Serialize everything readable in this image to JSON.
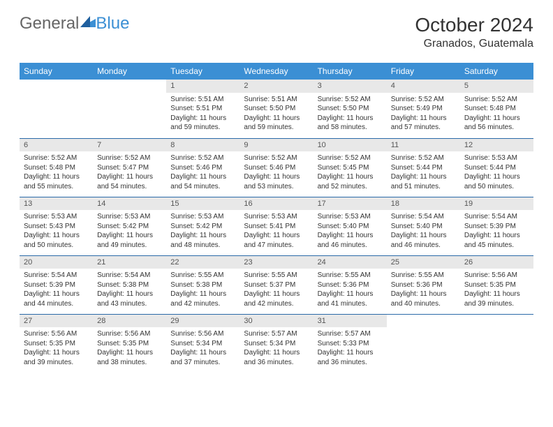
{
  "logo": {
    "text_general": "General",
    "text_blue": "Blue"
  },
  "title": "October 2024",
  "location": "Granados, Guatemala",
  "colors": {
    "header_bg": "#3b8fd4",
    "header_text": "#ffffff",
    "day_header_bg": "#e8e8e8",
    "border": "#2a6aa8",
    "body_text": "#333333"
  },
  "day_headers": [
    "Sunday",
    "Monday",
    "Tuesday",
    "Wednesday",
    "Thursday",
    "Friday",
    "Saturday"
  ],
  "weeks": [
    [
      null,
      null,
      {
        "n": "1",
        "sr": "5:51 AM",
        "ss": "5:51 PM",
        "dl": "11 hours and 59 minutes."
      },
      {
        "n": "2",
        "sr": "5:51 AM",
        "ss": "5:50 PM",
        "dl": "11 hours and 59 minutes."
      },
      {
        "n": "3",
        "sr": "5:52 AM",
        "ss": "5:50 PM",
        "dl": "11 hours and 58 minutes."
      },
      {
        "n": "4",
        "sr": "5:52 AM",
        "ss": "5:49 PM",
        "dl": "11 hours and 57 minutes."
      },
      {
        "n": "5",
        "sr": "5:52 AM",
        "ss": "5:48 PM",
        "dl": "11 hours and 56 minutes."
      }
    ],
    [
      {
        "n": "6",
        "sr": "5:52 AM",
        "ss": "5:48 PM",
        "dl": "11 hours and 55 minutes."
      },
      {
        "n": "7",
        "sr": "5:52 AM",
        "ss": "5:47 PM",
        "dl": "11 hours and 54 minutes."
      },
      {
        "n": "8",
        "sr": "5:52 AM",
        "ss": "5:46 PM",
        "dl": "11 hours and 54 minutes."
      },
      {
        "n": "9",
        "sr": "5:52 AM",
        "ss": "5:46 PM",
        "dl": "11 hours and 53 minutes."
      },
      {
        "n": "10",
        "sr": "5:52 AM",
        "ss": "5:45 PM",
        "dl": "11 hours and 52 minutes."
      },
      {
        "n": "11",
        "sr": "5:52 AM",
        "ss": "5:44 PM",
        "dl": "11 hours and 51 minutes."
      },
      {
        "n": "12",
        "sr": "5:53 AM",
        "ss": "5:44 PM",
        "dl": "11 hours and 50 minutes."
      }
    ],
    [
      {
        "n": "13",
        "sr": "5:53 AM",
        "ss": "5:43 PM",
        "dl": "11 hours and 50 minutes."
      },
      {
        "n": "14",
        "sr": "5:53 AM",
        "ss": "5:42 PM",
        "dl": "11 hours and 49 minutes."
      },
      {
        "n": "15",
        "sr": "5:53 AM",
        "ss": "5:42 PM",
        "dl": "11 hours and 48 minutes."
      },
      {
        "n": "16",
        "sr": "5:53 AM",
        "ss": "5:41 PM",
        "dl": "11 hours and 47 minutes."
      },
      {
        "n": "17",
        "sr": "5:53 AM",
        "ss": "5:40 PM",
        "dl": "11 hours and 46 minutes."
      },
      {
        "n": "18",
        "sr": "5:54 AM",
        "ss": "5:40 PM",
        "dl": "11 hours and 46 minutes."
      },
      {
        "n": "19",
        "sr": "5:54 AM",
        "ss": "5:39 PM",
        "dl": "11 hours and 45 minutes."
      }
    ],
    [
      {
        "n": "20",
        "sr": "5:54 AM",
        "ss": "5:39 PM",
        "dl": "11 hours and 44 minutes."
      },
      {
        "n": "21",
        "sr": "5:54 AM",
        "ss": "5:38 PM",
        "dl": "11 hours and 43 minutes."
      },
      {
        "n": "22",
        "sr": "5:55 AM",
        "ss": "5:38 PM",
        "dl": "11 hours and 42 minutes."
      },
      {
        "n": "23",
        "sr": "5:55 AM",
        "ss": "5:37 PM",
        "dl": "11 hours and 42 minutes."
      },
      {
        "n": "24",
        "sr": "5:55 AM",
        "ss": "5:36 PM",
        "dl": "11 hours and 41 minutes."
      },
      {
        "n": "25",
        "sr": "5:55 AM",
        "ss": "5:36 PM",
        "dl": "11 hours and 40 minutes."
      },
      {
        "n": "26",
        "sr": "5:56 AM",
        "ss": "5:35 PM",
        "dl": "11 hours and 39 minutes."
      }
    ],
    [
      {
        "n": "27",
        "sr": "5:56 AM",
        "ss": "5:35 PM",
        "dl": "11 hours and 39 minutes."
      },
      {
        "n": "28",
        "sr": "5:56 AM",
        "ss": "5:35 PM",
        "dl": "11 hours and 38 minutes."
      },
      {
        "n": "29",
        "sr": "5:56 AM",
        "ss": "5:34 PM",
        "dl": "11 hours and 37 minutes."
      },
      {
        "n": "30",
        "sr": "5:57 AM",
        "ss": "5:34 PM",
        "dl": "11 hours and 36 minutes."
      },
      {
        "n": "31",
        "sr": "5:57 AM",
        "ss": "5:33 PM",
        "dl": "11 hours and 36 minutes."
      },
      null,
      null
    ]
  ],
  "labels": {
    "sunrise": "Sunrise: ",
    "sunset": "Sunset: ",
    "daylight": "Daylight: "
  }
}
